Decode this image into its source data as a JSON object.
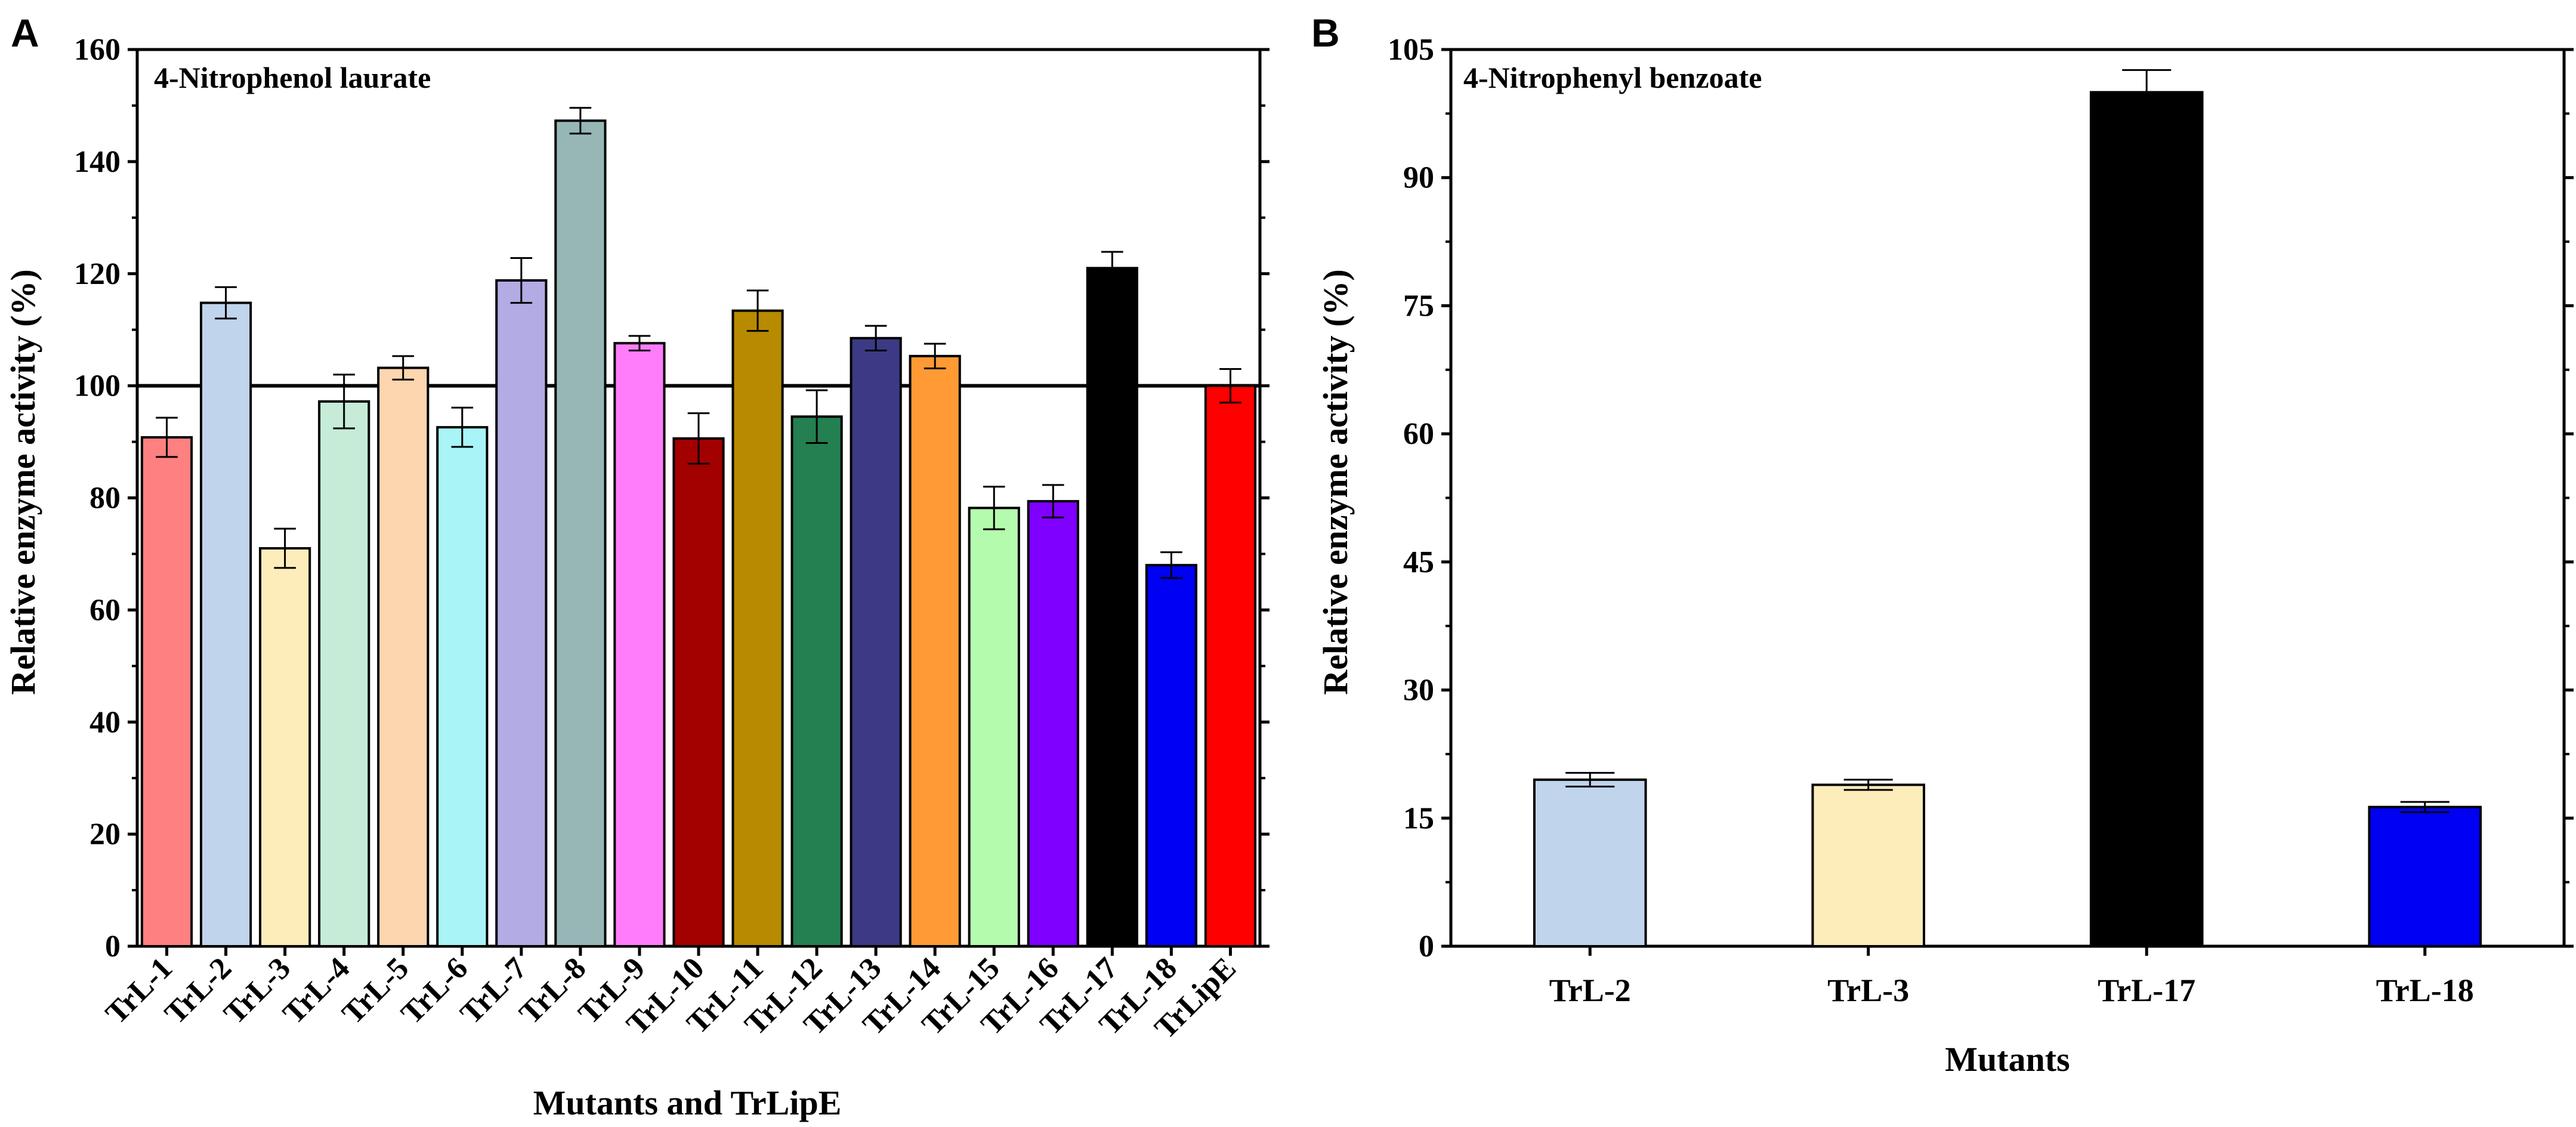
{
  "chart_data": [
    {
      "panel": "A",
      "type": "bar",
      "title": "4-Nitrophenol laurate",
      "xlabel": "Mutants and TrLipE",
      "ylabel": "Relative enzyme activity (%)",
      "ylim": [
        0,
        160
      ],
      "yticks": [
        0,
        20,
        40,
        60,
        80,
        100,
        120,
        140,
        160
      ],
      "reference_line": 100,
      "categories": [
        "TrL-1",
        "TrL-2",
        "TrL-3",
        "TrL-4",
        "TrL-5",
        "TrL-6",
        "TrL-7",
        "TrL-8",
        "TrL-9",
        "TrL-10",
        "TrL-11",
        "TrL-12",
        "TrL-13",
        "TrL-14",
        "TrL-15",
        "TrL-16",
        "TrL-17",
        "TrL-18",
        "TrLipE"
      ],
      "values": [
        90.8,
        114.8,
        71.0,
        97.2,
        103.2,
        92.6,
        118.8,
        147.3,
        107.6,
        90.6,
        113.4,
        94.5,
        108.5,
        105.3,
        78.2,
        79.4,
        121.0,
        68.0,
        100.0
      ],
      "errors": [
        3.5,
        2.8,
        3.5,
        4.8,
        2.1,
        3.5,
        4.0,
        2.3,
        1.3,
        4.5,
        3.6,
        4.7,
        2.2,
        2.2,
        3.8,
        2.9,
        2.9,
        2.3,
        3.0
      ],
      "colors": [
        "#ff8080",
        "#c0d4ec",
        "#fdedbb",
        "#c6ecd8",
        "#fdd6b0",
        "#a8f4f6",
        "#b3abe3",
        "#97b7b7",
        "#ff7dfb",
        "#a30000",
        "#b88a00",
        "#248050",
        "#3c3a84",
        "#ff9a35",
        "#b5fbad",
        "#7f00ff",
        "#000000",
        "#0000f2",
        "#ff0000"
      ]
    },
    {
      "panel": "B",
      "type": "bar",
      "title": "4-Nitrophenyl benzoate",
      "xlabel": "Mutants",
      "ylabel": "Relative enzyme activity (%)",
      "ylim": [
        0,
        105
      ],
      "yticks": [
        0,
        15,
        30,
        45,
        60,
        75,
        90,
        105
      ],
      "categories": [
        "TrL-2",
        "TrL-3",
        "TrL-17",
        "TrL-18"
      ],
      "values": [
        19.5,
        18.9,
        100.0,
        16.3
      ],
      "errors": [
        0.8,
        0.6,
        2.6,
        0.6
      ],
      "colors": [
        "#c0d4ec",
        "#fdedbb",
        "#000000",
        "#0000f2"
      ]
    }
  ]
}
